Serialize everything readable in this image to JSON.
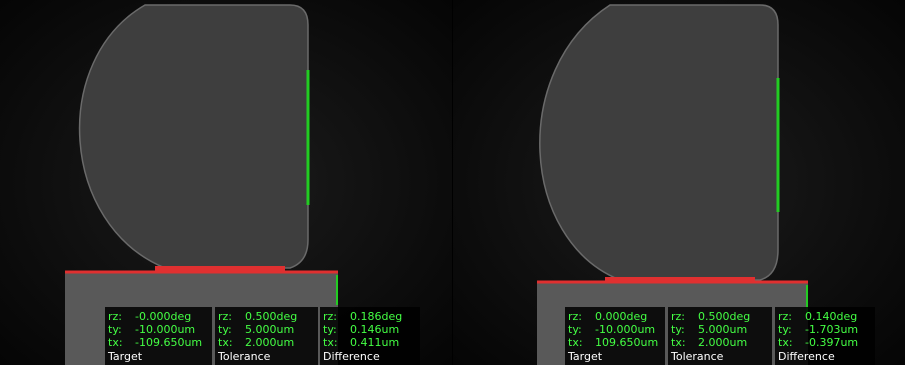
{
  "panels": [
    {
      "groups": [
        {
          "title": "Target",
          "rows": [
            {
              "key": "rz:",
              "value": "-0.000deg"
            },
            {
              "key": "ty:",
              "value": "-10.000um"
            },
            {
              "key": "tx:",
              "value": "-109.650um"
            }
          ]
        },
        {
          "title": "Tolerance",
          "rows": [
            {
              "key": "rz:",
              "value": "0.500deg"
            },
            {
              "key": "ty:",
              "value": "5.000um"
            },
            {
              "key": "tx:",
              "value": "2.000um"
            }
          ]
        },
        {
          "title": "Difference",
          "rows": [
            {
              "key": "rz:",
              "value": "0.186deg"
            },
            {
              "key": "ty:",
              "value": "0.146um"
            },
            {
              "key": "tx:",
              "value": "0.411um"
            }
          ]
        }
      ]
    },
    {
      "groups": [
        {
          "title": "Target",
          "rows": [
            {
              "key": "rz:",
              "value": "0.000deg"
            },
            {
              "key": "ty:",
              "value": "-10.000um"
            },
            {
              "key": "tx:",
              "value": "109.650um"
            }
          ]
        },
        {
          "title": "Tolerance",
          "rows": [
            {
              "key": "rz:",
              "value": "0.500deg"
            },
            {
              "key": "ty:",
              "value": "5.000um"
            },
            {
              "key": "tx:",
              "value": "2.000um"
            }
          ]
        },
        {
          "title": "Difference",
          "rows": [
            {
              "key": "rz:",
              "value": "0.140deg"
            },
            {
              "key": "ty:",
              "value": "-1.703um"
            },
            {
              "key": "tx:",
              "value": "-0.397um"
            }
          ]
        }
      ]
    }
  ]
}
